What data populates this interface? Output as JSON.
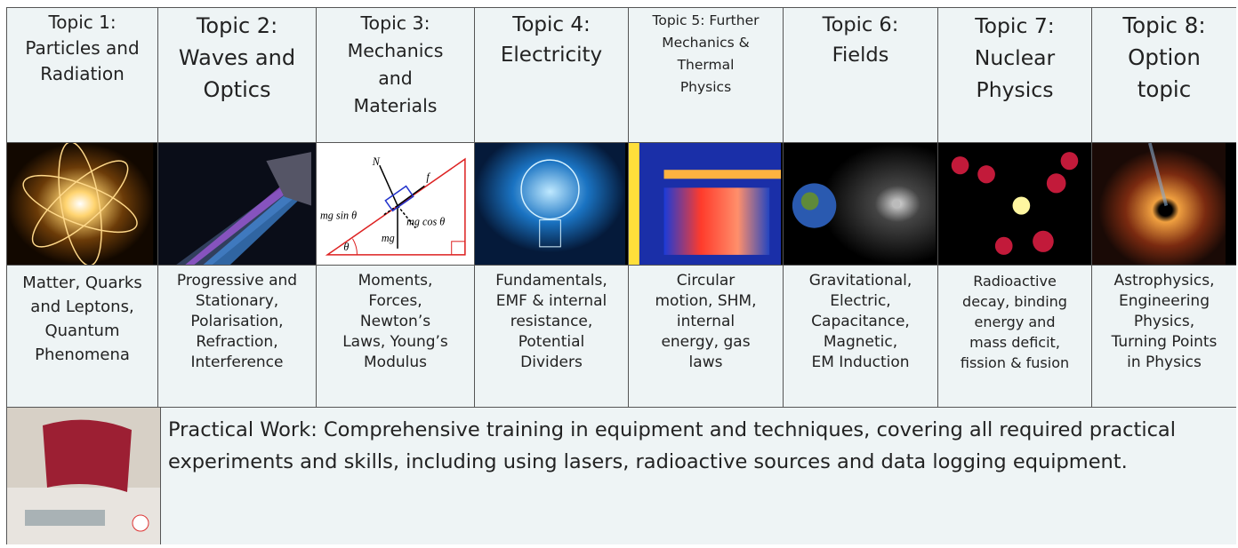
{
  "topics": [
    {
      "heading": [
        "Topic 1:",
        "Particles and",
        "Radiation"
      ],
      "description": [
        "Matter, Quarks",
        "and Leptons,",
        "Quantum",
        "Phenomena"
      ]
    },
    {
      "heading": [
        "Topic 2:",
        "Waves and",
        "Optics"
      ],
      "description": [
        "Progressive and",
        "Stationary,",
        "Polarisation,",
        "Refraction,",
        "Interference"
      ]
    },
    {
      "heading": [
        "Topic 3:",
        "Mechanics",
        "and",
        "Materials"
      ],
      "description": [
        "Moments,",
        "Forces,",
        "Newton’s",
        "Laws, Young’s",
        "Modulus"
      ]
    },
    {
      "heading": [
        "Topic 4:",
        "Electricity"
      ],
      "description": [
        "Fundamentals,",
        "EMF & internal",
        "resistance,",
        "Potential",
        "Dividers"
      ]
    },
    {
      "heading": [
        "Topic 5: Further",
        "Mechanics &",
        "Thermal",
        "Physics"
      ],
      "description": [
        "Circular",
        "motion, SHM,",
        "internal",
        "energy, gas",
        "laws"
      ]
    },
    {
      "heading": [
        "Topic 6:",
        "Fields"
      ],
      "description": [
        "Gravitational,",
        "Electric,",
        "Capacitance,",
        "Magnetic,",
        "EM Induction"
      ]
    },
    {
      "heading": [
        "Topic 7:",
        "Nuclear",
        "Physics"
      ],
      "description": [
        "Radioactive",
        "decay, binding",
        "energy and",
        "mass deficit,",
        "fission & fusion"
      ]
    },
    {
      "heading": [
        "Topic 8:",
        "Option",
        "topic"
      ],
      "description": [
        "Astrophysics,",
        "Engineering",
        "Physics,",
        "Turning Points",
        "in Physics"
      ]
    }
  ],
  "mechanics_diagram": {
    "labels": [
      "N",
      "f",
      "mg sin θ",
      "mg cos θ",
      "mg",
      "θ"
    ]
  },
  "practical": {
    "text": "Practical Work:  Comprehensive training in equipment and techniques, covering all required practical experiments and skills, including using lasers, radioactive sources and data logging equipment."
  }
}
